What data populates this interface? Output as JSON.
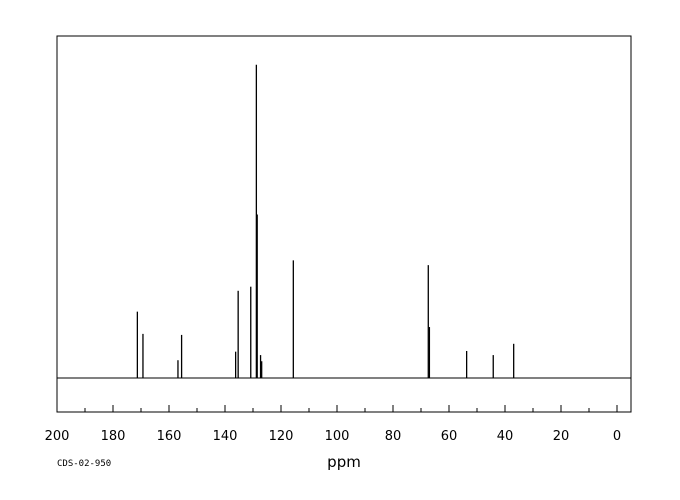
{
  "chart_data": {
    "type": "line",
    "title": "",
    "xlabel": "ppm",
    "ylabel": "",
    "xlim": [
      200,
      -5
    ],
    "x_reversed": true,
    "ylim": [
      0,
      1
    ],
    "grid": false,
    "x_tick_labels": [
      "200",
      "180",
      "160",
      "140",
      "120",
      "100",
      "80",
      "60",
      "40",
      "20",
      "0"
    ],
    "x_tick_values": [
      200,
      180,
      160,
      140,
      120,
      100,
      80,
      60,
      40,
      20,
      0
    ],
    "series": [
      {
        "peaks": [
          {
            "ppm": 171.3,
            "intensity": 0.194
          },
          {
            "ppm": 169.3,
            "intensity": 0.129
          },
          {
            "ppm": 156.8,
            "intensity": 0.052
          },
          {
            "ppm": 155.5,
            "intensity": 0.126
          },
          {
            "ppm": 136.2,
            "intensity": 0.077
          },
          {
            "ppm": 135.3,
            "intensity": 0.255
          },
          {
            "ppm": 130.8,
            "intensity": 0.267
          },
          {
            "ppm": 128.8,
            "intensity": 0.916
          },
          {
            "ppm": 128.5,
            "intensity": 0.478
          },
          {
            "ppm": 127.3,
            "intensity": 0.067
          },
          {
            "ppm": 126.9,
            "intensity": 0.049
          },
          {
            "ppm": 115.6,
            "intensity": 0.344
          },
          {
            "ppm": 67.4,
            "intensity": 0.33
          },
          {
            "ppm": 67.0,
            "intensity": 0.149
          },
          {
            "ppm": 53.7,
            "intensity": 0.079
          },
          {
            "ppm": 44.2,
            "intensity": 0.067
          },
          {
            "ppm": 36.9,
            "intensity": 0.1
          }
        ]
      }
    ]
  },
  "footer": {
    "code": "CDS-02-950"
  },
  "colors": {
    "line": "#000000",
    "background": "#ffffff"
  }
}
